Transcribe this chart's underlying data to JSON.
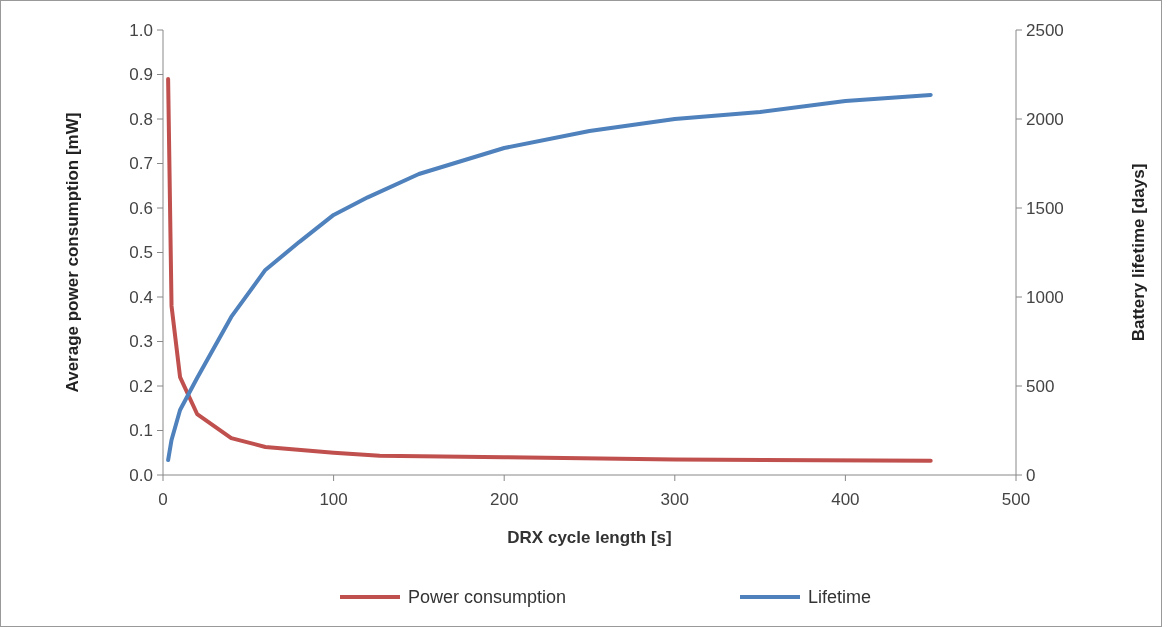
{
  "chart_data": {
    "type": "line",
    "xlabel": "DRX cycle length [s]",
    "ylabel": "Average power consumption [mW]",
    "y2label": "Battery lifetime [days]",
    "xlim": [
      0,
      500
    ],
    "xticks": [
      0,
      100,
      200,
      300,
      400,
      500
    ],
    "ylim": [
      0,
      1
    ],
    "yticks": [
      {
        "value": 0,
        "label": "0.0"
      },
      0.1,
      0.2,
      0.3,
      0.4,
      0.5,
      0.6,
      0.7,
      0.8,
      0.9,
      {
        "value": 1,
        "label": "1.0"
      }
    ],
    "y2lim": [
      0,
      2500
    ],
    "y2ticks": [
      0,
      500,
      1000,
      1500,
      2000,
      2500
    ],
    "legend": "bottom",
    "grid": false,
    "series": [
      {
        "name": "Power consumption",
        "color": "#c0504d",
        "x": [
          3,
          5,
          10,
          20,
          40,
          60,
          100,
          127,
          200,
          300,
          450
        ],
        "values": [
          0.89,
          0.38,
          0.22,
          0.137,
          0.083,
          0.063,
          0.05,
          0.043,
          0.04,
          0.035,
          0.032
        ]
      },
      {
        "name": "Lifetime",
        "color": "#4f81bd",
        "axis": "y2",
        "x": [
          3,
          5,
          10,
          20,
          40,
          60,
          80,
          100,
          120,
          150,
          200,
          250,
          300,
          350,
          400,
          450
        ],
        "values": [
          84,
          197,
          365,
          545,
          888,
          1152,
          1310,
          1461,
          1560,
          1691,
          1837,
          1933,
          2000,
          2039,
          2101,
          2135
        ]
      }
    ]
  }
}
